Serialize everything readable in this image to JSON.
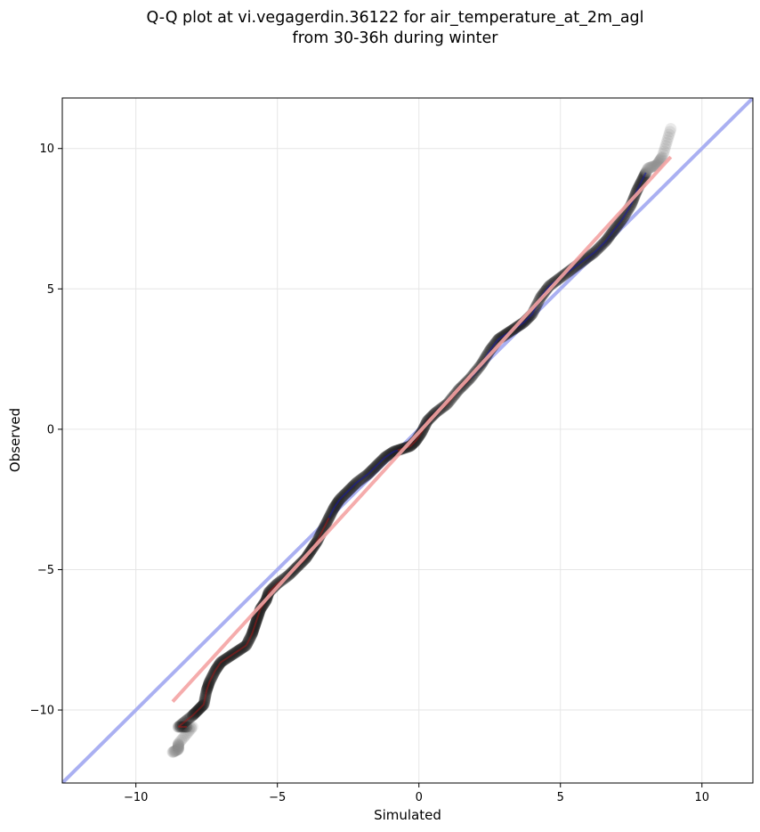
{
  "chart_data": {
    "type": "scatter",
    "title_line1": "Q-Q plot at vi.vegagerdin.36122 for air_temperature_at_2m_agl",
    "title_line2": "from 30-36h during winter",
    "xlabel": "Simulated",
    "ylabel": "Observed",
    "xlim": [
      -12.6,
      11.8
    ],
    "ylim": [
      -12.6,
      11.8
    ],
    "x_ticks": [
      -10,
      -5,
      0,
      5,
      10
    ],
    "y_ticks": [
      -10,
      -5,
      0,
      5,
      10
    ],
    "x_tick_labels": [
      "−10",
      "−5",
      "0",
      "5",
      "10"
    ],
    "y_tick_labels": [
      "−10",
      "−5",
      "0",
      "5",
      "10"
    ],
    "grid": true,
    "reference_line": {
      "slope": 1,
      "intercept": 0,
      "color": "#aab0f2"
    },
    "fit_line": {
      "x": [
        -8.7,
        8.9
      ],
      "y": [
        -9.7,
        9.7
      ],
      "color": "#f4a3a3"
    },
    "tail_fraction": 0.05,
    "qq_points": [
      [
        -8.7,
        -11.5
      ],
      [
        -8.5,
        -11.4
      ],
      [
        -8.5,
        -11.2
      ],
      [
        -8.0,
        -10.6
      ],
      [
        -8.5,
        -10.6
      ],
      [
        -8.0,
        -10.2
      ],
      [
        -7.8,
        -10.0
      ],
      [
        -7.6,
        -9.8
      ],
      [
        -7.5,
        -9.3
      ],
      [
        -7.4,
        -9.0
      ],
      [
        -7.2,
        -8.6
      ],
      [
        -7.0,
        -8.3
      ],
      [
        -6.7,
        -8.1
      ],
      [
        -6.4,
        -7.9
      ],
      [
        -6.1,
        -7.7
      ],
      [
        -5.9,
        -7.3
      ],
      [
        -5.8,
        -7.0
      ],
      [
        -5.7,
        -6.7
      ],
      [
        -5.6,
        -6.4
      ],
      [
        -5.4,
        -6.1
      ],
      [
        -5.3,
        -5.8
      ],
      [
        -5.0,
        -5.5
      ],
      [
        -4.6,
        -5.2
      ],
      [
        -4.3,
        -4.9
      ],
      [
        -4.0,
        -4.6
      ],
      [
        -3.8,
        -4.3
      ],
      [
        -3.6,
        -4.0
      ],
      [
        -3.4,
        -3.6
      ],
      [
        -3.2,
        -3.2
      ],
      [
        -3.0,
        -2.8
      ],
      [
        -2.8,
        -2.5
      ],
      [
        -2.5,
        -2.2
      ],
      [
        -2.2,
        -1.9
      ],
      [
        -1.8,
        -1.6
      ],
      [
        -1.5,
        -1.3
      ],
      [
        -1.2,
        -1.0
      ],
      [
        -0.9,
        -0.8
      ],
      [
        -0.6,
        -0.7
      ],
      [
        -0.3,
        -0.6
      ],
      [
        -0.1,
        -0.4
      ],
      [
        0.1,
        -0.1
      ],
      [
        0.3,
        0.3
      ],
      [
        0.6,
        0.6
      ],
      [
        1.0,
        0.9
      ],
      [
        1.4,
        1.4
      ],
      [
        1.8,
        1.8
      ],
      [
        2.2,
        2.3
      ],
      [
        2.5,
        2.8
      ],
      [
        2.8,
        3.2
      ],
      [
        3.1,
        3.4
      ],
      [
        3.4,
        3.6
      ],
      [
        3.7,
        3.8
      ],
      [
        4.0,
        4.1
      ],
      [
        4.3,
        4.7
      ],
      [
        4.6,
        5.1
      ],
      [
        5.0,
        5.4
      ],
      [
        5.4,
        5.7
      ],
      [
        5.8,
        6.0
      ],
      [
        6.2,
        6.3
      ],
      [
        6.6,
        6.7
      ],
      [
        6.9,
        7.1
      ],
      [
        7.2,
        7.5
      ],
      [
        7.5,
        8.0
      ],
      [
        7.7,
        8.5
      ],
      [
        7.9,
        8.9
      ],
      [
        8.1,
        9.3
      ],
      [
        8.4,
        9.4
      ],
      [
        8.6,
        9.7
      ],
      [
        8.9,
        10.7
      ]
    ]
  }
}
